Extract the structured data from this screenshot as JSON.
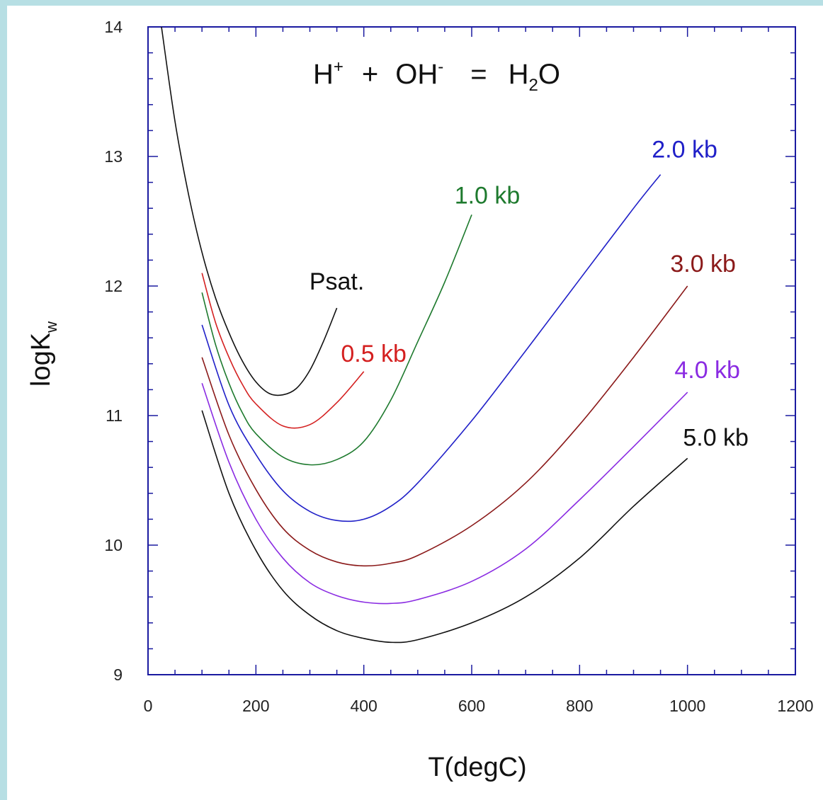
{
  "chart_data": {
    "type": "line",
    "title": "",
    "equation": {
      "a": "H",
      "a_sup": "+",
      "plus": "+",
      "b": "OH",
      "b_sup": "-",
      "eq": "=",
      "c1": "H",
      "c_sub": "2",
      "c2": "O"
    },
    "xlabel": "T(degC)",
    "ylabel": {
      "main": "logK",
      "sub": "w"
    },
    "xlim": [
      0,
      1200
    ],
    "ylim": [
      9,
      14
    ],
    "xticks": [
      "0",
      "200",
      "400",
      "600",
      "800",
      "1000",
      "1200"
    ],
    "yticks": [
      "9",
      "10",
      "11",
      "12",
      "13",
      "14"
    ],
    "grid": false,
    "frame_color": "#1a1aa0",
    "series": [
      {
        "name": "Psat.",
        "color": "#111111",
        "x": [
          25,
          50,
          75,
          100,
          125,
          150,
          175,
          200,
          225,
          250,
          275,
          300,
          325,
          350
        ],
        "y": [
          14.0,
          13.27,
          12.71,
          12.26,
          11.91,
          11.64,
          11.42,
          11.26,
          11.17,
          11.16,
          11.21,
          11.35,
          11.57,
          11.83
        ]
      },
      {
        "name": "0.5 kb",
        "color": "#d42020",
        "x": [
          100,
          125,
          150,
          175,
          200,
          250,
          300,
          350,
          400
        ],
        "y": [
          12.1,
          11.72,
          11.45,
          11.24,
          11.09,
          10.92,
          10.93,
          11.1,
          11.34
        ]
      },
      {
        "name": "1.0 kb",
        "color": "#1e7a2e",
        "x": [
          100,
          125,
          150,
          175,
          200,
          250,
          300,
          350,
          400,
          450,
          500,
          550,
          600
        ],
        "y": [
          11.95,
          11.55,
          11.25,
          11.02,
          10.86,
          10.68,
          10.62,
          10.66,
          10.8,
          11.12,
          11.57,
          12.03,
          12.55
        ]
      },
      {
        "name": "2.0 kb",
        "color": "#2020c8",
        "x": [
          100,
          150,
          200,
          250,
          300,
          350,
          400,
          450,
          500,
          600,
          700,
          800,
          900,
          950
        ],
        "y": [
          11.7,
          11.08,
          10.7,
          10.42,
          10.26,
          10.19,
          10.2,
          10.3,
          10.48,
          10.96,
          11.5,
          12.05,
          12.6,
          12.86
        ]
      },
      {
        "name": "3.0 kb",
        "color": "#8b1a1a",
        "x": [
          100,
          150,
          200,
          250,
          300,
          350,
          400,
          450,
          500,
          600,
          700,
          800,
          900,
          1000
        ],
        "y": [
          11.45,
          10.85,
          10.43,
          10.13,
          9.96,
          9.87,
          9.84,
          9.86,
          9.92,
          10.15,
          10.48,
          10.93,
          11.45,
          12.0
        ]
      },
      {
        "name": "4.0 kb",
        "color": "#8a2be2",
        "x": [
          100,
          150,
          200,
          250,
          300,
          350,
          400,
          450,
          500,
          600,
          700,
          800,
          900,
          1000
        ],
        "y": [
          11.25,
          10.64,
          10.2,
          9.9,
          9.71,
          9.61,
          9.56,
          9.55,
          9.58,
          9.72,
          9.97,
          10.35,
          10.76,
          11.18
        ]
      },
      {
        "name": "5.0 kb",
        "color": "#111111",
        "x": [
          100,
          150,
          200,
          250,
          300,
          350,
          400,
          450,
          500,
          600,
          700,
          800,
          900,
          1000
        ],
        "y": [
          11.04,
          10.4,
          9.96,
          9.65,
          9.46,
          9.34,
          9.28,
          9.25,
          9.27,
          9.4,
          9.6,
          9.9,
          10.3,
          10.67
        ]
      }
    ]
  }
}
